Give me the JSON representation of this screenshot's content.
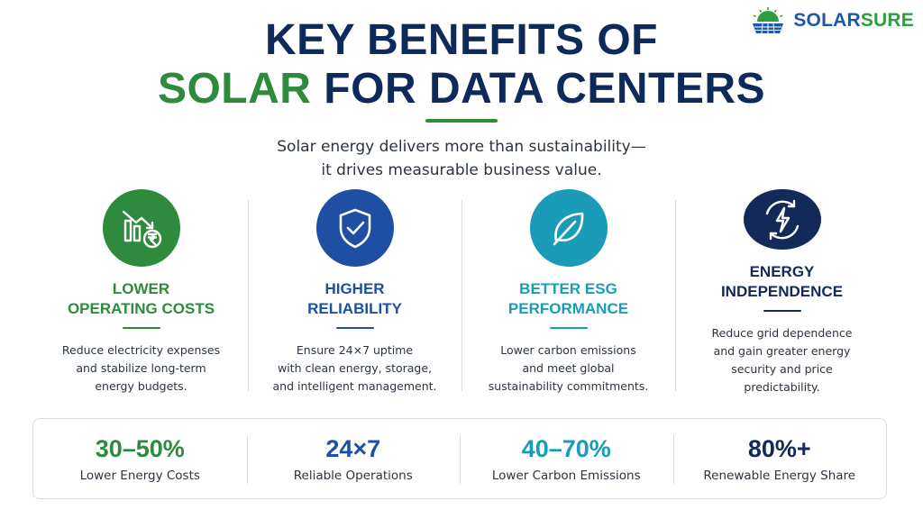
{
  "logo": {
    "part1": "SOLAR",
    "part2": "SURE",
    "icon": "sun-panel-icon"
  },
  "title": {
    "line1": "KEY BENEFITS OF",
    "line2_green": "SOLAR",
    "line2_rest": " FOR DATA CENTERS"
  },
  "subtitle": {
    "line1": "Solar energy delivers more than sustainability—",
    "line2": "it drives measurable business value."
  },
  "colors": {
    "navy": "#0e2a5a",
    "green": "#2e8b3d",
    "blue": "#1f4fa3",
    "teal": "#1a9cb8",
    "dark_navy": "#13295a"
  },
  "benefits": [
    {
      "icon": "cost-chart-rupee-icon",
      "title_line1": "LOWER",
      "title_line2": "OPERATING COSTS",
      "desc_line1": "Reduce electricity expenses",
      "desc_line2": "and stabilize long-term",
      "desc_line3": "energy budgets."
    },
    {
      "icon": "shield-check-icon",
      "title_line1": "HIGHER",
      "title_line2": "RELIABILITY",
      "desc_line1": "Ensure 24×7 uptime",
      "desc_line2": "with clean energy, storage,",
      "desc_line3": "and intelligent management."
    },
    {
      "icon": "leaf-icon",
      "title_line1": "BETTER ESG",
      "title_line2": "PERFORMANCE",
      "desc_line1": "Lower carbon emissions",
      "desc_line2": "and meet global",
      "desc_line3": "sustainability commitments."
    },
    {
      "icon": "lightning-cycle-icon",
      "title_line1": "ENERGY",
      "title_line2": "INDEPENDENCE",
      "desc_line1": "Reduce grid dependence",
      "desc_line2": "and gain greater energy",
      "desc_line3": "security and price predictability."
    }
  ],
  "stats": [
    {
      "value": "30–50%",
      "label": "Lower Energy Costs"
    },
    {
      "value": "24×7",
      "label": "Reliable Operations"
    },
    {
      "value": "40–70%",
      "label": "Lower Carbon Emissions"
    },
    {
      "value": "80%+",
      "label": "Renewable Energy Share"
    }
  ]
}
